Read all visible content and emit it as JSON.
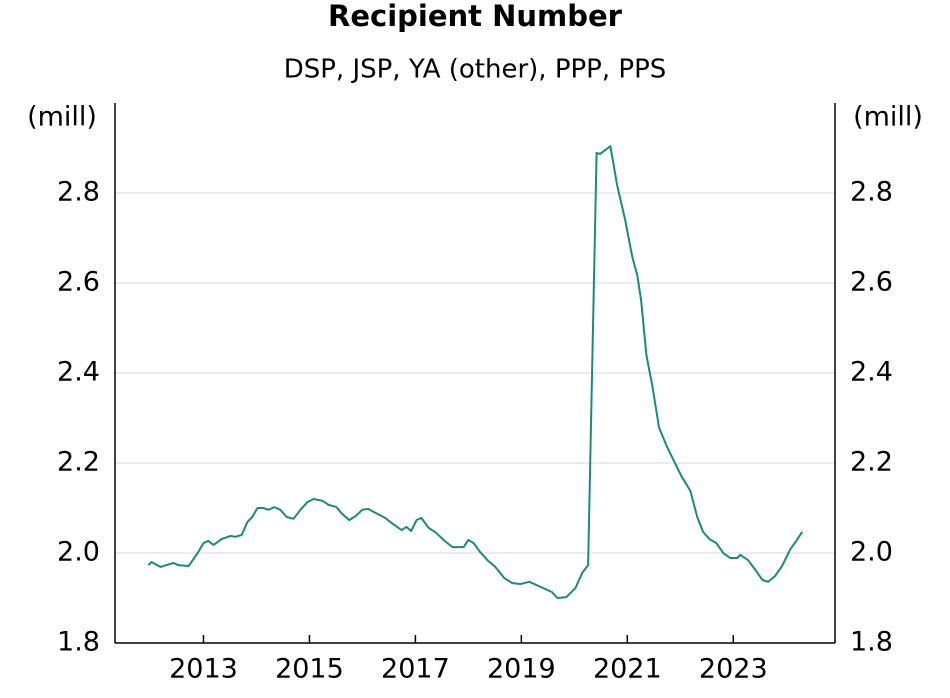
{
  "chart_data": {
    "type": "line",
    "title": "Recipient Number",
    "subtitle": "DSP, JSP, YA (other), PPP, PPS",
    "y_label": "(mill)",
    "xlim": [
      2011.33,
      2024.92
    ],
    "xticks": [
      2013,
      2015,
      2017,
      2019,
      2021,
      2023
    ],
    "ylim": [
      1.8,
      3.0
    ],
    "yticks": [
      1.8,
      {
        "value": 2,
        "label": "2.0"
      },
      2.2,
      2.4,
      2.6,
      2.8
    ],
    "grid": true,
    "x": [
      2011.96,
      2012.02,
      2012.19,
      2012.43,
      2012.53,
      2012.72,
      2012.89,
      2013.0,
      2013.09,
      2013.19,
      2013.34,
      2013.51,
      2013.6,
      2013.72,
      2013.83,
      2013.92,
      2014.02,
      2014.13,
      2014.23,
      2014.34,
      2014.45,
      2014.57,
      2014.7,
      2014.83,
      2014.96,
      2015.08,
      2015.25,
      2015.36,
      2015.51,
      2015.6,
      2015.75,
      2015.87,
      2016.0,
      2016.11,
      2016.25,
      2016.43,
      2016.58,
      2016.74,
      2016.83,
      2016.92,
      2017.02,
      2017.11,
      2017.25,
      2017.4,
      2017.55,
      2017.7,
      2017.81,
      2017.91,
      2018.0,
      2018.1,
      2018.21,
      2018.36,
      2018.51,
      2018.68,
      2018.83,
      2018.98,
      2019.15,
      2019.32,
      2019.45,
      2019.58,
      2019.68,
      2019.85,
      2020.02,
      2020.15,
      2020.26,
      2020.42,
      2020.49,
      2020.68,
      2020.81,
      2020.96,
      2021.09,
      2021.19,
      2021.26,
      2021.36,
      2021.47,
      2021.6,
      2021.75,
      2021.89,
      2022.02,
      2022.19,
      2022.32,
      2022.43,
      2022.55,
      2022.68,
      2022.81,
      2022.94,
      2023.08,
      2023.13,
      2023.28,
      2023.42,
      2023.55,
      2023.66,
      2023.79,
      2023.92,
      2024.08,
      2024.19,
      2024.3
    ],
    "series": [
      {
        "color": "#1a8a7f",
        "values": [
          1.973,
          1.98,
          1.969,
          1.978,
          1.973,
          1.971,
          2.0,
          2.022,
          2.027,
          2.018,
          2.031,
          2.038,
          2.036,
          2.04,
          2.069,
          2.08,
          2.1,
          2.1,
          2.096,
          2.102,
          2.096,
          2.08,
          2.076,
          2.096,
          2.113,
          2.12,
          2.116,
          2.107,
          2.102,
          2.089,
          2.073,
          2.082,
          2.096,
          2.098,
          2.089,
          2.078,
          2.064,
          2.051,
          2.058,
          2.049,
          2.073,
          2.078,
          2.056,
          2.044,
          2.027,
          2.013,
          2.013,
          2.013,
          2.029,
          2.022,
          2.004,
          1.984,
          1.969,
          1.944,
          1.933,
          1.931,
          1.936,
          1.927,
          1.92,
          1.913,
          1.9,
          1.902,
          1.922,
          1.956,
          1.973,
          2.889,
          2.887,
          2.904,
          2.816,
          2.74,
          2.66,
          2.616,
          2.562,
          2.44,
          2.373,
          2.278,
          2.236,
          2.202,
          2.171,
          2.138,
          2.08,
          2.047,
          2.031,
          2.022,
          2.0,
          1.989,
          1.989,
          1.996,
          1.984,
          1.962,
          1.94,
          1.936,
          1.949,
          1.971,
          2.009,
          2.027,
          2.047
        ]
      }
    ]
  }
}
